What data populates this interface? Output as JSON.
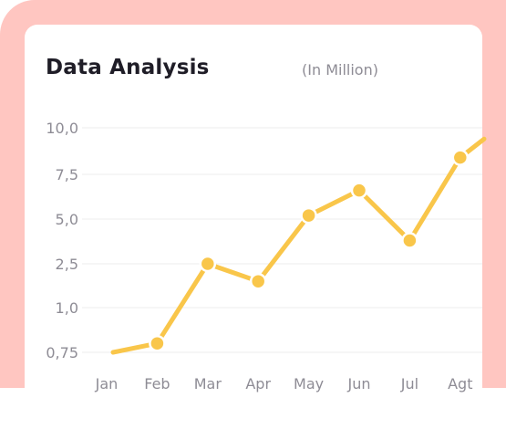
{
  "card": {
    "title": "Data Analysis",
    "subtitle": "(In Million)"
  },
  "colors": {
    "frame": "#ffc6c1",
    "card": "#ffffff",
    "line": "#f9c64a",
    "marker_stroke": "#ffffff",
    "grid": "#eeeeee",
    "tick_text": "#8e8c95"
  },
  "chart_data": {
    "type": "line",
    "title": "Data Analysis",
    "subtitle": "(In Million)",
    "xlabel": "",
    "ylabel": "",
    "y_axis_scale": "categorical (unevenly spaced tick values)",
    "yticks": [
      "0,75",
      "1,0",
      "2,5",
      "5,0",
      "7,5",
      "10,0"
    ],
    "categories": [
      "Jan",
      "Feb",
      "Mar",
      "Apr",
      "May",
      "Jun",
      "Jul",
      "Agt"
    ],
    "values": [
      0.75,
      0.8,
      2.5,
      1.9,
      5.2,
      6.6,
      3.8,
      8.4
    ],
    "values_note": "Line also continues past the right edge of the card, rising toward about 9.4",
    "grid": true,
    "legend": "none"
  }
}
